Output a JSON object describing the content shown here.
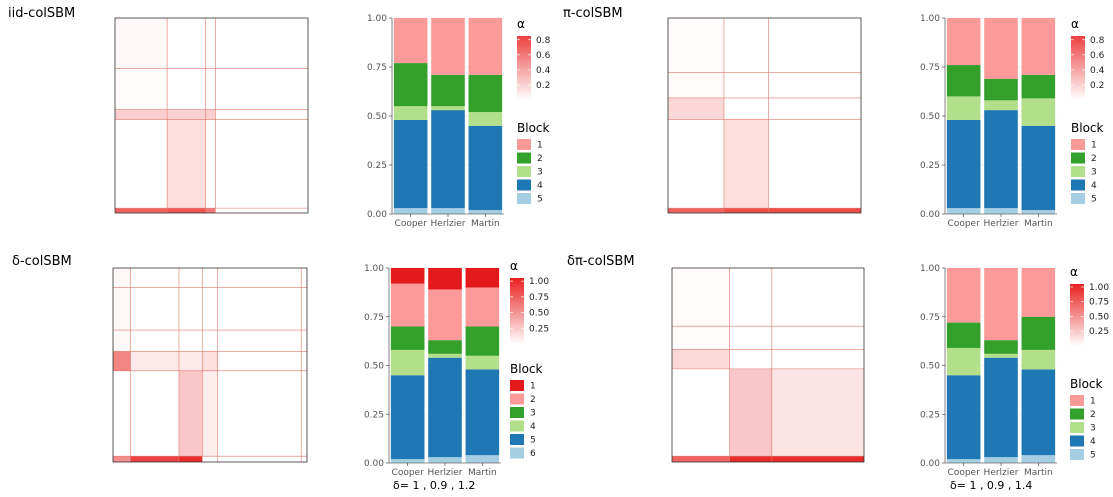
{
  "panels": [
    {
      "title": "iid-colSBM",
      "delta_text": ""
    },
    {
      "title": "π-colSBM",
      "delta_text": ""
    },
    {
      "title": "δ-colSBM",
      "delta_text": "δ=  1 ,  0.9 ,  1.2"
    },
    {
      "title": "δπ-colSBM",
      "delta_text": "δ=  1 ,  0.9 ,  1.4"
    }
  ],
  "colors": {
    "matrix_line": "#e07a6a",
    "alpha_low": "#ffffff",
    "alpha_high": "#e8201e",
    "block_palette": [
      "#e31a1c",
      "#fb9a99",
      "#33a02c",
      "#b2df8a",
      "#1f78b4",
      "#a6cee3"
    ]
  },
  "chart_data": [
    {
      "type": "heatmap",
      "panel": "iid-colSBM",
      "row_breaks": [
        0.26,
        0.47,
        0.52,
        0.975
      ],
      "col_breaks": [
        0.27,
        0.47,
        0.52
      ],
      "cells": [
        {
          "r": 0,
          "c": 0,
          "alpha": 0.03
        },
        {
          "r": 1,
          "c": 0,
          "alpha": 0.02
        },
        {
          "r": 2,
          "c": 0,
          "alpha": 0.22
        },
        {
          "r": 2,
          "c": 1,
          "alpha": 0.2
        },
        {
          "r": 2,
          "c": 2,
          "alpha": 0.22
        },
        {
          "r": 3,
          "c": 1,
          "alpha": 0.15
        },
        {
          "r": 4,
          "c": 0,
          "alpha": 0.7
        },
        {
          "r": 4,
          "c": 1,
          "alpha": 0.75
        },
        {
          "r": 4,
          "c": 2,
          "alpha": 0.6
        }
      ]
    },
    {
      "type": "bar",
      "panel": "iid-colSBM",
      "categories": [
        "Cooper",
        "Herlzier",
        "Martin"
      ],
      "ylim": [
        0,
        1
      ],
      "yticks": [
        "0.00",
        "0.25",
        "0.50",
        "0.75",
        "1.00"
      ],
      "legend_title": "Block",
      "blocks": [
        "1",
        "2",
        "3",
        "4",
        "5"
      ],
      "block_colors": [
        "#fb9a99",
        "#33a02c",
        "#b2df8a",
        "#1f78b4",
        "#a6cee3"
      ],
      "series": [
        {
          "name": "5",
          "values": [
            0.03,
            0.03,
            0.02
          ]
        },
        {
          "name": "4",
          "values": [
            0.45,
            0.5,
            0.43
          ]
        },
        {
          "name": "3",
          "values": [
            0.07,
            0.02,
            0.07
          ]
        },
        {
          "name": "2",
          "values": [
            0.22,
            0.16,
            0.19
          ]
        },
        {
          "name": "1",
          "values": [
            0.23,
            0.29,
            0.29
          ]
        }
      ],
      "alpha_legend": {
        "title": "α",
        "ticks": [
          "0.8",
          "0.6",
          "0.4",
          "0.2"
        ],
        "tick_values": [
          0.8,
          0.6,
          0.4,
          0.2
        ],
        "max": 0.85
      }
    },
    {
      "type": "heatmap",
      "panel": "π-colSBM",
      "row_breaks": [
        0.28,
        0.41,
        0.52,
        0.975
      ],
      "col_breaks": [
        0.29,
        0.52
      ],
      "cells": [
        {
          "r": 0,
          "c": 0,
          "alpha": 0.02
        },
        {
          "r": 1,
          "c": 0,
          "alpha": 0.02
        },
        {
          "r": 2,
          "c": 0,
          "alpha": 0.18
        },
        {
          "r": 3,
          "c": 1,
          "alpha": 0.15
        },
        {
          "r": 4,
          "c": 0,
          "alpha": 0.7
        },
        {
          "r": 4,
          "c": 1,
          "alpha": 0.8
        },
        {
          "r": 4,
          "c": 2,
          "alpha": 0.8
        }
      ]
    },
    {
      "type": "bar",
      "panel": "π-colSBM",
      "categories": [
        "Cooper",
        "Herlzier",
        "Martin"
      ],
      "ylim": [
        0,
        1
      ],
      "yticks": [
        "0.00",
        "0.25",
        "0.50",
        "0.75",
        "1.00"
      ],
      "legend_title": "Block",
      "blocks": [
        "1",
        "2",
        "3",
        "4",
        "5"
      ],
      "block_colors": [
        "#fb9a99",
        "#33a02c",
        "#b2df8a",
        "#1f78b4",
        "#a6cee3"
      ],
      "series": [
        {
          "name": "5",
          "values": [
            0.03,
            0.03,
            0.02
          ]
        },
        {
          "name": "4",
          "values": [
            0.45,
            0.5,
            0.43
          ]
        },
        {
          "name": "3",
          "values": [
            0.12,
            0.05,
            0.14
          ]
        },
        {
          "name": "2",
          "values": [
            0.16,
            0.11,
            0.12
          ]
        },
        {
          "name": "1",
          "values": [
            0.24,
            0.31,
            0.29
          ]
        }
      ],
      "alpha_legend": {
        "title": "α",
        "ticks": [
          "0.8",
          "0.6",
          "0.4",
          "0.2"
        ],
        "tick_values": [
          0.8,
          0.6,
          0.4,
          0.2
        ],
        "max": 0.85
      }
    },
    {
      "type": "heatmap",
      "panel": "δ-colSBM",
      "row_breaks": [
        0.1,
        0.32,
        0.43,
        0.53,
        0.97
      ],
      "col_breaks": [
        0.09,
        0.34,
        0.46,
        0.54,
        0.97
      ],
      "cells": [
        {
          "r": 3,
          "c": 0,
          "alpha": 0.55
        },
        {
          "r": 3,
          "c": 1,
          "alpha": 0.1
        },
        {
          "r": 3,
          "c": 2,
          "alpha": 0.1
        },
        {
          "r": 3,
          "c": 3,
          "alpha": 0.15
        },
        {
          "r": 4,
          "c": 2,
          "alpha": 0.25
        },
        {
          "r": 5,
          "c": 1,
          "alpha": 0.85
        },
        {
          "r": 5,
          "c": 2,
          "alpha": 0.95
        },
        {
          "r": 5,
          "c": 0,
          "alpha": 0.5
        },
        {
          "r": 0,
          "c": 0,
          "alpha": 0.03
        },
        {
          "r": 1,
          "c": 0,
          "alpha": 0.03
        },
        {
          "r": 2,
          "c": 0,
          "alpha": 0.03
        },
        {
          "r": 4,
          "c": 3,
          "alpha": 0.08
        }
      ]
    },
    {
      "type": "bar",
      "panel": "δ-colSBM",
      "categories": [
        "Cooper",
        "Herlzier",
        "Martin"
      ],
      "ylim": [
        0,
        1
      ],
      "yticks": [
        "0.00",
        "0.25",
        "0.50",
        "0.75",
        "1.00"
      ],
      "legend_title": "Block",
      "blocks": [
        "1",
        "2",
        "3",
        "4",
        "5",
        "6"
      ],
      "block_colors": [
        "#e31a1c",
        "#fb9a99",
        "#33a02c",
        "#b2df8a",
        "#1f78b4",
        "#a6cee3"
      ],
      "series": [
        {
          "name": "6",
          "values": [
            0.02,
            0.03,
            0.04
          ]
        },
        {
          "name": "5",
          "values": [
            0.43,
            0.51,
            0.44
          ]
        },
        {
          "name": "4",
          "values": [
            0.13,
            0.02,
            0.07
          ]
        },
        {
          "name": "3",
          "values": [
            0.12,
            0.07,
            0.15
          ]
        },
        {
          "name": "2",
          "values": [
            0.22,
            0.26,
            0.2
          ]
        },
        {
          "name": "1",
          "values": [
            0.08,
            0.11,
            0.1
          ]
        }
      ],
      "alpha_legend": {
        "title": "α",
        "ticks": [
          "1.00",
          "0.75",
          "0.50",
          "0.25"
        ],
        "tick_values": [
          1.0,
          0.75,
          0.5,
          0.25
        ],
        "max": 1.05
      }
    },
    {
      "type": "heatmap",
      "panel": "δπ-colSBM",
      "row_breaks": [
        0.3,
        0.42,
        0.52,
        0.97
      ],
      "col_breaks": [
        0.3,
        0.52
      ],
      "cells": [
        {
          "r": 2,
          "c": 0,
          "alpha": 0.17
        },
        {
          "r": 3,
          "c": 1,
          "alpha": 0.25
        },
        {
          "r": 3,
          "c": 2,
          "alpha": 0.12
        },
        {
          "r": 4,
          "c": 0,
          "alpha": 0.7
        },
        {
          "r": 4,
          "c": 1,
          "alpha": 0.95
        },
        {
          "r": 4,
          "c": 2,
          "alpha": 0.95
        },
        {
          "r": 0,
          "c": 0,
          "alpha": 0.02
        },
        {
          "r": 1,
          "c": 0,
          "alpha": 0.02
        }
      ]
    },
    {
      "type": "bar",
      "panel": "δπ-colSBM",
      "categories": [
        "Cooper",
        "Herlzier",
        "Martin"
      ],
      "ylim": [
        0,
        1
      ],
      "yticks": [
        "0.00",
        "0.25",
        "0.50",
        "0.75",
        "1.00"
      ],
      "legend_title": "Block",
      "blocks": [
        "1",
        "2",
        "3",
        "4",
        "5"
      ],
      "block_colors": [
        "#fb9a99",
        "#33a02c",
        "#b2df8a",
        "#1f78b4",
        "#a6cee3"
      ],
      "series": [
        {
          "name": "5",
          "values": [
            0.02,
            0.03,
            0.04
          ]
        },
        {
          "name": "4",
          "values": [
            0.43,
            0.51,
            0.44
          ]
        },
        {
          "name": "3",
          "values": [
            0.14,
            0.02,
            0.1
          ]
        },
        {
          "name": "2",
          "values": [
            0.13,
            0.07,
            0.17
          ]
        },
        {
          "name": "1",
          "values": [
            0.28,
            0.37,
            0.25
          ]
        }
      ],
      "alpha_legend": {
        "title": "α",
        "ticks": [
          "1.00",
          "0.75",
          "0.50",
          "0.25"
        ],
        "tick_values": [
          1.0,
          0.75,
          0.5,
          0.25
        ],
        "max": 1.05
      }
    }
  ]
}
